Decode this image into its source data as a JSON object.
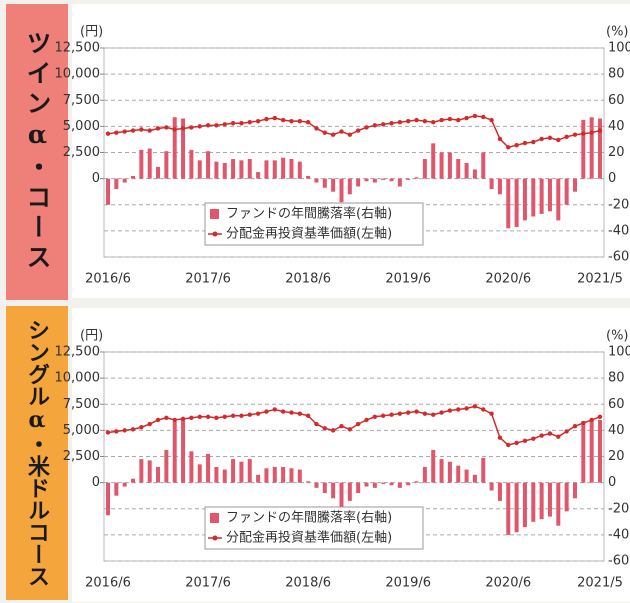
{
  "chart_data": [
    {
      "type": "bar_line",
      "title": "ツインα・コース",
      "ylabel": "(円)",
      "y2label": "(%)",
      "categories": [
        "2016/6",
        null,
        null,
        null,
        null,
        null,
        null,
        null,
        null,
        null,
        null,
        null,
        "2017/6",
        null,
        null,
        null,
        null,
        null,
        null,
        null,
        null,
        null,
        null,
        null,
        "2018/6",
        null,
        null,
        null,
        null,
        null,
        null,
        null,
        null,
        null,
        null,
        null,
        "2019/6",
        null,
        null,
        null,
        null,
        null,
        null,
        null,
        null,
        null,
        null,
        null,
        "2020/6",
        null,
        null,
        null,
        null,
        null,
        null,
        null,
        null,
        null,
        null,
        "2021/5"
      ],
      "series": [
        {
          "name": "ファンドの年間騰落率(右軸)",
          "color": "#e0566b",
          "axis": "y2",
          "values": [
            -20,
            -8,
            -3,
            2,
            22,
            23,
            9,
            21,
            47,
            46,
            22,
            14,
            21,
            13,
            12,
            15,
            14,
            15,
            5,
            14,
            14,
            16,
            15,
            13,
            2,
            -3,
            -7,
            -10,
            -18,
            -12,
            -6,
            -2,
            -3,
            -1,
            -2,
            -6,
            -1,
            1,
            15,
            27,
            20,
            20,
            15,
            12,
            7,
            20,
            -8,
            -12,
            -38,
            -37,
            -32,
            -29,
            -27,
            -25,
            -32,
            -20,
            -10,
            45,
            47,
            46
          ]
        },
        {
          "name": "分配金再投資基準価額(左軸)",
          "color": "#d42a2a",
          "axis": "y",
          "values": [
            4300,
            4400,
            4500,
            4600,
            4700,
            4600,
            4800,
            4900,
            4700,
            4800,
            4900,
            5000,
            5100,
            5100,
            5200,
            5300,
            5300,
            5400,
            5500,
            5700,
            5800,
            5600,
            5500,
            5500,
            5400,
            4800,
            4400,
            4200,
            4500,
            4200,
            4600,
            4900,
            5100,
            5200,
            5300,
            5400,
            5500,
            5600,
            5500,
            5400,
            5600,
            5700,
            5600,
            5800,
            6000,
            5900,
            5600,
            3800,
            3000,
            3200,
            3400,
            3500,
            3800,
            3900,
            3700,
            4000,
            4200,
            4300,
            4400,
            4600
          ]
        }
      ],
      "ylim": [
        -7500,
        12500
      ],
      "yticks": [
        0,
        {
          "value": 2500,
          "label": "2,500"
        },
        {
          "value": 5000,
          "label": "5,000"
        },
        {
          "value": 7500,
          "label": "7,500"
        },
        {
          "value": 10000,
          "label": "10,000"
        },
        {
          "value": 12500,
          "label": "12,500"
        }
      ],
      "y2lim": [
        -60,
        100
      ],
      "y2ticks": [
        -60,
        -40,
        -20,
        0,
        20,
        40,
        60,
        80,
        100
      ],
      "grid": true,
      "legend": "lower center"
    },
    {
      "type": "bar_line",
      "title": "シングルα・米ドルコース",
      "ylabel": "(円)",
      "y2label": "(%)",
      "categories": [
        "2016/6",
        null,
        null,
        null,
        null,
        null,
        null,
        null,
        null,
        null,
        null,
        null,
        "2017/6",
        null,
        null,
        null,
        null,
        null,
        null,
        null,
        null,
        null,
        null,
        null,
        "2018/6",
        null,
        null,
        null,
        null,
        null,
        null,
        null,
        null,
        null,
        null,
        null,
        "2019/6",
        null,
        null,
        null,
        null,
        null,
        null,
        null,
        null,
        null,
        null,
        null,
        "2020/6",
        null,
        null,
        null,
        null,
        null,
        null,
        null,
        null,
        null,
        null,
        "2021/5"
      ],
      "series": [
        {
          "name": "ファンドの年間騰落率(右軸)",
          "color": "#e0566b",
          "axis": "y2",
          "values": [
            -25,
            -10,
            -3,
            3,
            18,
            17,
            12,
            25,
            47,
            48,
            24,
            14,
            22,
            12,
            10,
            18,
            16,
            18,
            6,
            11,
            12,
            12,
            11,
            10,
            1,
            -4,
            -8,
            -12,
            -20,
            -14,
            -8,
            -3,
            -4,
            -1,
            -2,
            -4,
            -2,
            1,
            12,
            25,
            18,
            16,
            13,
            10,
            6,
            19,
            -6,
            -14,
            -40,
            -38,
            -34,
            -30,
            -28,
            -26,
            -33,
            -22,
            -12,
            47,
            48,
            48
          ]
        },
        {
          "name": "分配金再投資基準価額(左軸)",
          "color": "#d42a2a",
          "axis": "y",
          "values": [
            4800,
            4900,
            5000,
            5100,
            5300,
            5600,
            6000,
            6200,
            6000,
            6100,
            6200,
            6300,
            6300,
            6200,
            6300,
            6400,
            6400,
            6500,
            6600,
            6800,
            7000,
            6800,
            6700,
            6600,
            6400,
            5600,
            5200,
            5000,
            5400,
            5100,
            5600,
            6000,
            6300,
            6400,
            6500,
            6600,
            6700,
            6800,
            6600,
            6500,
            6700,
            6900,
            7000,
            7100,
            7300,
            7000,
            6600,
            4300,
            3600,
            3800,
            4000,
            4200,
            4500,
            4700,
            4400,
            4900,
            5400,
            5700,
            6000,
            6300
          ]
        }
      ],
      "ylim": [
        -7500,
        12500
      ],
      "yticks": [
        0,
        {
          "value": 2500,
          "label": "2,500"
        },
        {
          "value": 5000,
          "label": "5,000"
        },
        {
          "value": 7500,
          "label": "7,500"
        },
        {
          "value": 10000,
          "label": "10,000"
        },
        {
          "value": 12500,
          "label": "12,500"
        }
      ],
      "y2lim": [
        -60,
        100
      ],
      "y2ticks": [
        -60,
        -40,
        -20,
        0,
        20,
        40,
        60,
        80,
        100
      ],
      "grid": true,
      "legend": "lower center"
    }
  ]
}
